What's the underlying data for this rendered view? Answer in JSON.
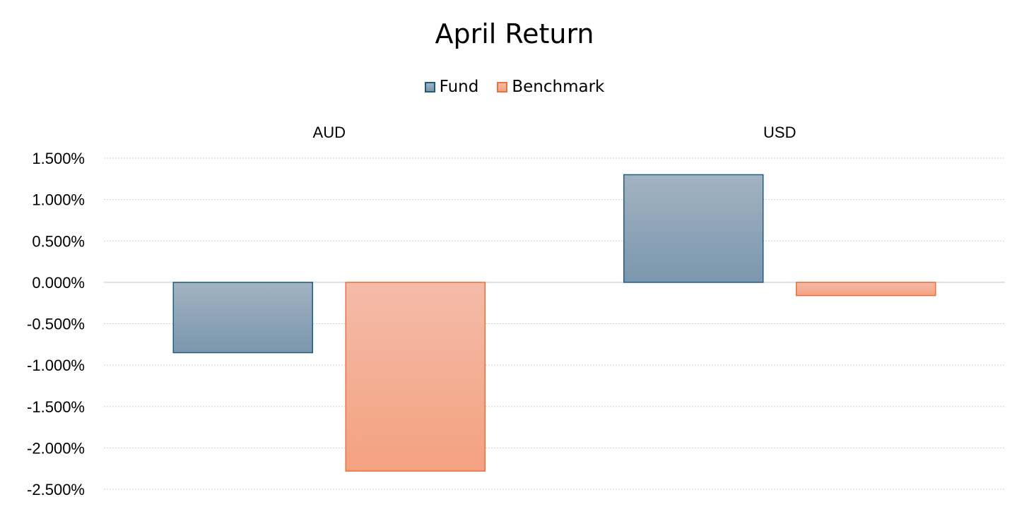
{
  "chart_data": {
    "type": "bar",
    "title": "April Return",
    "categories": [
      "AUD",
      "USD"
    ],
    "series": [
      {
        "name": "Fund",
        "values": [
          -0.85,
          1.3
        ],
        "fill_top": "#a2b3c2",
        "fill_bottom": "#7b96ad",
        "stroke": "#1f5d80"
      },
      {
        "name": "Benchmark",
        "values": [
          -2.28,
          -0.16
        ],
        "fill_top": "#f4bba8",
        "fill_bottom": "#f4a180",
        "stroke": "#e8733f"
      }
    ],
    "yticks": [
      "1.500%",
      "1.000%",
      "0.500%",
      "0.000%",
      "-0.500%",
      "-1.000%",
      "-1.500%",
      "-2.000%",
      "-2.500%"
    ],
    "ytick_values": [
      1.5,
      1.0,
      0.5,
      0.0,
      -0.5,
      -1.0,
      -1.5,
      -2.0,
      -2.5
    ],
    "ylim": [
      -2.5,
      1.5
    ],
    "category_axis_position": "top",
    "grid": true,
    "legend_position": "top"
  }
}
